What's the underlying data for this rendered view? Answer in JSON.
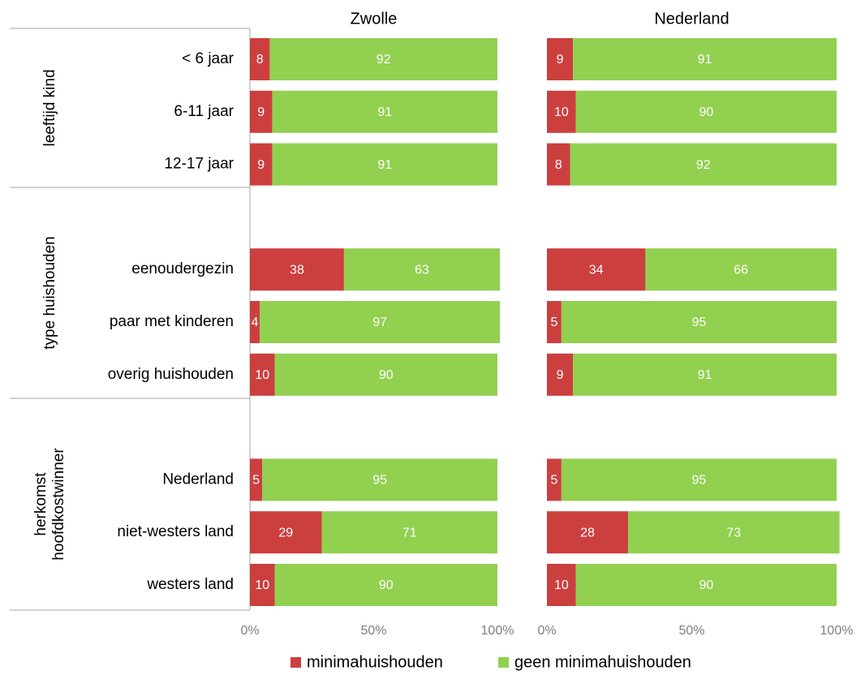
{
  "chart_data": {
    "type": "stacked-barh",
    "groups": [
      {
        "label": [
          "leeftijd kind"
        ],
        "categories": [
          "< 6 jaar",
          "6-11 jaar",
          "12-17 jaar"
        ]
      },
      {
        "label": [
          "type huishouden"
        ],
        "categories": [
          "eenoudergezin",
          "paar met kinderen",
          "overig huishouden"
        ]
      },
      {
        "label": [
          "herkomst",
          "hoofdkostwinner"
        ],
        "categories": [
          "Nederland",
          "niet-westers land",
          "westers land"
        ]
      }
    ],
    "panels": [
      {
        "title": "Zwolle",
        "xlim": [
          0,
          100
        ],
        "xticks": [
          {
            "value": 0,
            "label": "0%"
          },
          {
            "value": 50,
            "label": "50%"
          },
          {
            "value": 100,
            "label": "100%"
          }
        ],
        "series": [
          {
            "name": "minimahuishouden",
            "color": "#cc3f3f",
            "values": [
              8,
              9,
              9,
              38,
              4,
              10,
              5,
              29,
              10
            ]
          },
          {
            "name": "geen minimahuishouden",
            "color": "#92d050",
            "values": [
              92,
              91,
              91,
              63,
              97,
              90,
              95,
              71,
              90
            ]
          }
        ]
      },
      {
        "title": "Nederland",
        "xlim": [
          0,
          100
        ],
        "xticks": [
          {
            "value": 0,
            "label": "0%"
          },
          {
            "value": 50,
            "label": "50%"
          },
          {
            "value": 100,
            "label": "100%"
          }
        ],
        "series": [
          {
            "name": "minimahuishouden",
            "color": "#cc3f3f",
            "values": [
              9,
              10,
              8,
              34,
              5,
              9,
              5,
              28,
              10
            ]
          },
          {
            "name": "geen minimahuishouden",
            "color": "#92d050",
            "values": [
              91,
              90,
              92,
              66,
              95,
              91,
              95,
              73,
              90
            ]
          }
        ]
      }
    ]
  }
}
